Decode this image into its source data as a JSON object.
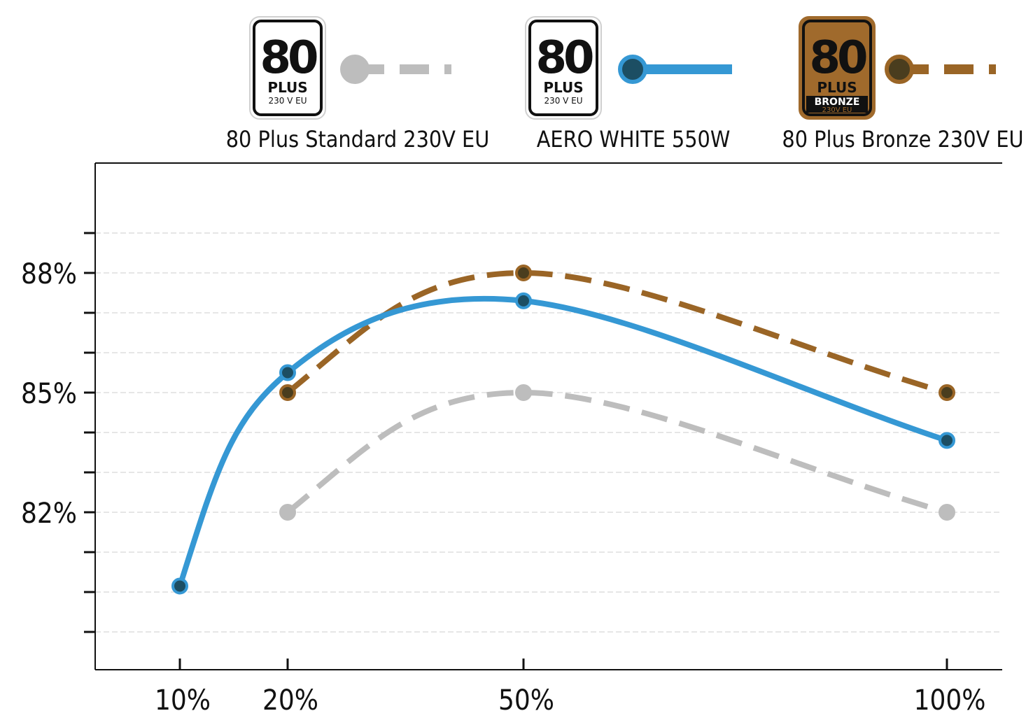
{
  "chart_data": {
    "type": "line",
    "x_labels": [
      "10%",
      "20%",
      "50%",
      "100%"
    ],
    "x_values": [
      10,
      20,
      50,
      100
    ],
    "y_ticks": [
      82,
      85,
      88
    ],
    "y_tick_labels": [
      "82%",
      "85%",
      "88%"
    ],
    "ylim": [
      79.0,
      90.0
    ],
    "grid": true,
    "legend_position": "top",
    "series": [
      {
        "name": "80 Plus Standard 230V EU",
        "color": "#BDBDBD",
        "point_color": "#BDBDBD",
        "style": "dashed",
        "badge": {
          "big": "80",
          "plus": "PLUS",
          "sub": "230 V  EU",
          "variant": "white"
        },
        "x": [
          20,
          50,
          100
        ],
        "y": [
          82,
          85,
          82
        ]
      },
      {
        "name": "AERO WHITE 550W",
        "color": "#3598D4",
        "point_color": "#1C4E63",
        "style": "solid",
        "badge": {
          "big": "80",
          "plus": "PLUS",
          "sub": "230 V  EU",
          "variant": "white"
        },
        "x": [
          10,
          20,
          50,
          100
        ],
        "y": [
          80.15,
          85.5,
          87.3,
          83.8
        ]
      },
      {
        "name": "80 Plus Bronze 230V EU",
        "color": "#9A6526",
        "point_color": "#4A3D1E",
        "style": "dashed",
        "badge": {
          "big": "80",
          "plus": "PLUS",
          "tier": "BRONZE",
          "sub": "230V EU",
          "variant": "bronze"
        },
        "x": [
          20,
          50,
          100
        ],
        "y": [
          85,
          88,
          85
        ]
      }
    ]
  }
}
